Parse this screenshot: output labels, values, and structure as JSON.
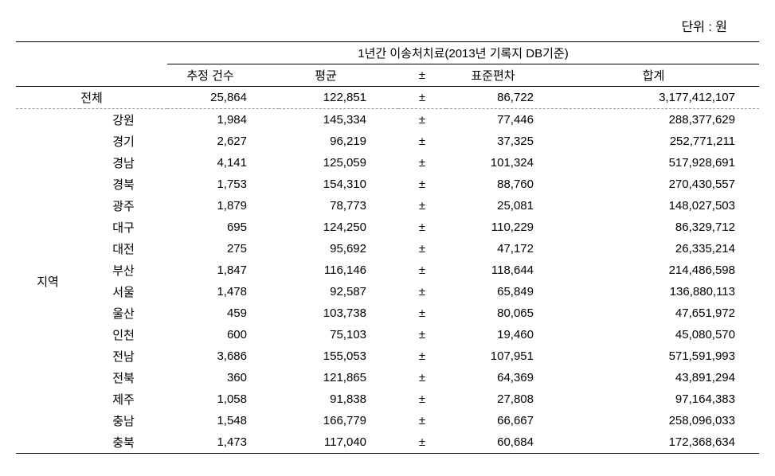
{
  "unit_label": "단위 : 원",
  "header": {
    "super_title": "1년간 이송처치료(2013년 기록지 DB기준)",
    "cols": {
      "count": "추정 건수",
      "mean": "평균",
      "pm": "±",
      "std": "표준편차",
      "sum": "합계"
    }
  },
  "total_label": "전체",
  "region_group_label": "지역",
  "total": {
    "count": "25,864",
    "mean": "122,851",
    "pm": "±",
    "std": "86,722",
    "sum": "3,177,412,107"
  },
  "regions": [
    {
      "name": "강원",
      "count": "1,984",
      "mean": "145,334",
      "pm": "±",
      "std": "77,446",
      "sum": "288,377,629"
    },
    {
      "name": "경기",
      "count": "2,627",
      "mean": "96,219",
      "pm": "±",
      "std": "37,325",
      "sum": "252,771,211"
    },
    {
      "name": "경남",
      "count": "4,141",
      "mean": "125,059",
      "pm": "±",
      "std": "101,324",
      "sum": "517,928,691"
    },
    {
      "name": "경북",
      "count": "1,753",
      "mean": "154,310",
      "pm": "±",
      "std": "88,760",
      "sum": "270,430,557"
    },
    {
      "name": "광주",
      "count": "1,879",
      "mean": "78,773",
      "pm": "±",
      "std": "25,081",
      "sum": "148,027,503"
    },
    {
      "name": "대구",
      "count": "695",
      "mean": "124,250",
      "pm": "±",
      "std": "110,229",
      "sum": "86,329,712"
    },
    {
      "name": "대전",
      "count": "275",
      "mean": "95,692",
      "pm": "±",
      "std": "47,172",
      "sum": "26,335,214"
    },
    {
      "name": "부산",
      "count": "1,847",
      "mean": "116,146",
      "pm": "±",
      "std": "118,644",
      "sum": "214,486,598"
    },
    {
      "name": "서울",
      "count": "1,478",
      "mean": "92,587",
      "pm": "±",
      "std": "65,849",
      "sum": "136,880,113"
    },
    {
      "name": "울산",
      "count": "459",
      "mean": "103,738",
      "pm": "±",
      "std": "80,065",
      "sum": "47,651,972"
    },
    {
      "name": "인천",
      "count": "600",
      "mean": "75,103",
      "pm": "±",
      "std": "19,460",
      "sum": "45,080,570"
    },
    {
      "name": "전남",
      "count": "3,686",
      "mean": "155,053",
      "pm": "±",
      "std": "107,951",
      "sum": "571,591,993"
    },
    {
      "name": "전북",
      "count": "360",
      "mean": "121,865",
      "pm": "±",
      "std": "64,369",
      "sum": "43,891,294"
    },
    {
      "name": "제주",
      "count": "1,058",
      "mean": "91,838",
      "pm": "±",
      "std": "27,808",
      "sum": "97,164,383"
    },
    {
      "name": "충남",
      "count": "1,548",
      "mean": "166,779",
      "pm": "±",
      "std": "66,667",
      "sum": "258,096,033"
    },
    {
      "name": "충북",
      "count": "1,473",
      "mean": "117,040",
      "pm": "±",
      "std": "60,684",
      "sum": "172,368,634"
    }
  ],
  "style": {
    "background_color": "#ffffff",
    "text_color": "#000000",
    "border_color": "#000000",
    "dashed_color": "#999999",
    "font_family": "Malgun Gothic",
    "font_size_pt": 11
  }
}
